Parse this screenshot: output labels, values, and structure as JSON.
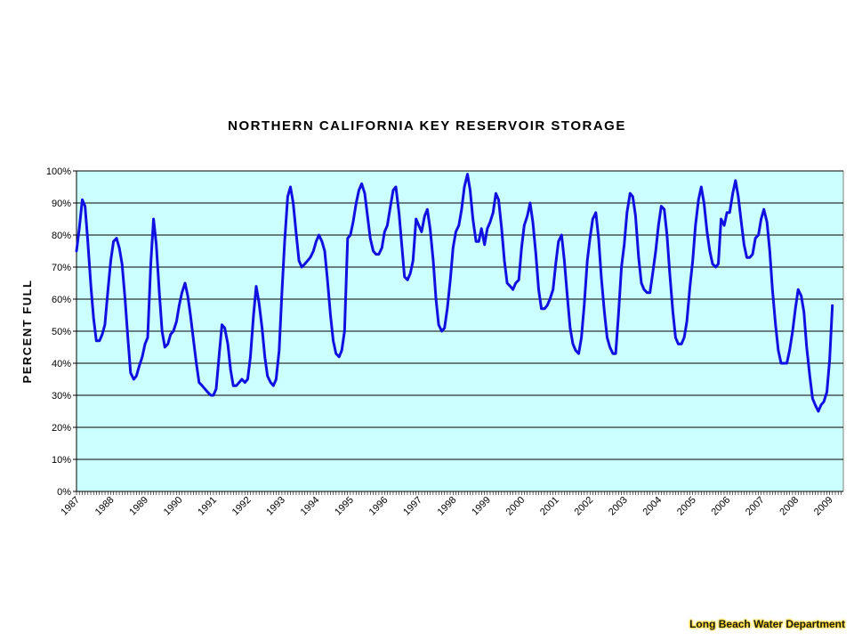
{
  "chart_data": {
    "type": "line",
    "title": "NORTHERN CALIFORNIA KEY RESERVOIR STORAGE",
    "xlabel": "",
    "ylabel": "PERCENT FULL",
    "x_tick_labels": [
      "1987",
      "1988",
      "1989",
      "1990",
      "1991",
      "1992",
      "1993",
      "1994",
      "1995",
      "1996",
      "1997",
      "1998",
      "1999",
      "2000",
      "2001",
      "2002",
      "2003",
      "2004",
      "2005",
      "2006",
      "2007",
      "2008",
      "2009"
    ],
    "y_tick_labels": [
      "0%",
      "10%",
      "20%",
      "30%",
      "40%",
      "50%",
      "60%",
      "70%",
      "80%",
      "90%",
      "100%"
    ],
    "ylim": [
      0,
      100
    ],
    "xlim": [
      1987.0,
      2009.4
    ],
    "grid": "horizontal",
    "background": "#ccffff",
    "series": [
      {
        "color": "#1010e0",
        "points": [
          [
            1987.0,
            75
          ],
          [
            1987.08,
            82
          ],
          [
            1987.17,
            91
          ],
          [
            1987.25,
            89
          ],
          [
            1987.33,
            78
          ],
          [
            1987.42,
            64
          ],
          [
            1987.5,
            54
          ],
          [
            1987.58,
            47
          ],
          [
            1987.67,
            47
          ],
          [
            1987.75,
            49
          ],
          [
            1987.83,
            52
          ],
          [
            1987.92,
            63
          ],
          [
            1988.0,
            72
          ],
          [
            1988.08,
            78
          ],
          [
            1988.17,
            79
          ],
          [
            1988.25,
            76
          ],
          [
            1988.33,
            71
          ],
          [
            1988.42,
            60
          ],
          [
            1988.5,
            48
          ],
          [
            1988.58,
            37
          ],
          [
            1988.67,
            35
          ],
          [
            1988.75,
            36
          ],
          [
            1988.83,
            39
          ],
          [
            1988.92,
            42
          ],
          [
            1989.0,
            46
          ],
          [
            1989.08,
            48
          ],
          [
            1989.17,
            71
          ],
          [
            1989.25,
            85
          ],
          [
            1989.33,
            77
          ],
          [
            1989.42,
            62
          ],
          [
            1989.5,
            50
          ],
          [
            1989.58,
            45
          ],
          [
            1989.67,
            46
          ],
          [
            1989.75,
            49
          ],
          [
            1989.83,
            50
          ],
          [
            1989.92,
            53
          ],
          [
            1990.0,
            58
          ],
          [
            1990.08,
            62
          ],
          [
            1990.17,
            65
          ],
          [
            1990.25,
            61
          ],
          [
            1990.33,
            55
          ],
          [
            1990.42,
            47
          ],
          [
            1990.5,
            40
          ],
          [
            1990.58,
            34
          ],
          [
            1990.67,
            33
          ],
          [
            1990.75,
            32
          ],
          [
            1990.83,
            31
          ],
          [
            1990.92,
            30
          ],
          [
            1991.0,
            30
          ],
          [
            1991.08,
            32
          ],
          [
            1991.17,
            43
          ],
          [
            1991.25,
            52
          ],
          [
            1991.33,
            51
          ],
          [
            1991.42,
            46
          ],
          [
            1991.5,
            38
          ],
          [
            1991.58,
            33
          ],
          [
            1991.67,
            33
          ],
          [
            1991.75,
            34
          ],
          [
            1991.83,
            35
          ],
          [
            1991.92,
            34
          ],
          [
            1992.0,
            35
          ],
          [
            1992.08,
            42
          ],
          [
            1992.17,
            55
          ],
          [
            1992.25,
            64
          ],
          [
            1992.33,
            59
          ],
          [
            1992.42,
            51
          ],
          [
            1992.5,
            42
          ],
          [
            1992.58,
            36
          ],
          [
            1992.67,
            34
          ],
          [
            1992.75,
            33
          ],
          [
            1992.83,
            35
          ],
          [
            1992.92,
            44
          ],
          [
            1993.0,
            62
          ],
          [
            1993.08,
            78
          ],
          [
            1993.17,
            92
          ],
          [
            1993.25,
            95
          ],
          [
            1993.33,
            90
          ],
          [
            1993.42,
            80
          ],
          [
            1993.5,
            72
          ],
          [
            1993.58,
            70
          ],
          [
            1993.67,
            71
          ],
          [
            1993.75,
            72
          ],
          [
            1993.83,
            73
          ],
          [
            1993.92,
            75
          ],
          [
            1994.0,
            78
          ],
          [
            1994.08,
            80
          ],
          [
            1994.17,
            78
          ],
          [
            1994.25,
            75
          ],
          [
            1994.33,
            66
          ],
          [
            1994.42,
            55
          ],
          [
            1994.5,
            47
          ],
          [
            1994.58,
            43
          ],
          [
            1994.67,
            42
          ],
          [
            1994.75,
            44
          ],
          [
            1994.83,
            50
          ],
          [
            1994.92,
            79
          ],
          [
            1995.0,
            80
          ],
          [
            1995.08,
            84
          ],
          [
            1995.17,
            90
          ],
          [
            1995.25,
            94
          ],
          [
            1995.33,
            96
          ],
          [
            1995.42,
            93
          ],
          [
            1995.5,
            86
          ],
          [
            1995.58,
            79
          ],
          [
            1995.67,
            75
          ],
          [
            1995.75,
            74
          ],
          [
            1995.83,
            74
          ],
          [
            1995.92,
            76
          ],
          [
            1996.0,
            81
          ],
          [
            1996.08,
            83
          ],
          [
            1996.17,
            89
          ],
          [
            1996.25,
            94
          ],
          [
            1996.33,
            95
          ],
          [
            1996.42,
            87
          ],
          [
            1996.5,
            77
          ],
          [
            1996.58,
            67
          ],
          [
            1996.67,
            66
          ],
          [
            1996.75,
            68
          ],
          [
            1996.83,
            72
          ],
          [
            1996.92,
            85
          ],
          [
            1997.0,
            83
          ],
          [
            1997.08,
            81
          ],
          [
            1997.17,
            86
          ],
          [
            1997.25,
            88
          ],
          [
            1997.33,
            82
          ],
          [
            1997.42,
            72
          ],
          [
            1997.5,
            60
          ],
          [
            1997.58,
            52
          ],
          [
            1997.67,
            50
          ],
          [
            1997.75,
            51
          ],
          [
            1997.83,
            57
          ],
          [
            1997.92,
            66
          ],
          [
            1998.0,
            76
          ],
          [
            1998.08,
            81
          ],
          [
            1998.17,
            83
          ],
          [
            1998.25,
            88
          ],
          [
            1998.33,
            95
          ],
          [
            1998.42,
            99
          ],
          [
            1998.5,
            94
          ],
          [
            1998.58,
            85
          ],
          [
            1998.67,
            78
          ],
          [
            1998.75,
            78
          ],
          [
            1998.83,
            82
          ],
          [
            1998.92,
            77
          ],
          [
            1999.0,
            82
          ],
          [
            1999.08,
            84
          ],
          [
            1999.17,
            87
          ],
          [
            1999.25,
            93
          ],
          [
            1999.33,
            91
          ],
          [
            1999.42,
            82
          ],
          [
            1999.5,
            72
          ],
          [
            1999.58,
            65
          ],
          [
            1999.67,
            64
          ],
          [
            1999.75,
            63
          ],
          [
            1999.83,
            65
          ],
          [
            1999.92,
            66
          ],
          [
            2000.0,
            76
          ],
          [
            2000.08,
            83
          ],
          [
            2000.17,
            86
          ],
          [
            2000.25,
            90
          ],
          [
            2000.33,
            84
          ],
          [
            2000.42,
            74
          ],
          [
            2000.5,
            63
          ],
          [
            2000.58,
            57
          ],
          [
            2000.67,
            57
          ],
          [
            2000.75,
            58
          ],
          [
            2000.83,
            60
          ],
          [
            2000.92,
            63
          ],
          [
            2001.0,
            71
          ],
          [
            2001.08,
            78
          ],
          [
            2001.17,
            80
          ],
          [
            2001.25,
            72
          ],
          [
            2001.33,
            62
          ],
          [
            2001.42,
            51
          ],
          [
            2001.5,
            46
          ],
          [
            2001.58,
            44
          ],
          [
            2001.67,
            43
          ],
          [
            2001.75,
            48
          ],
          [
            2001.83,
            58
          ],
          [
            2001.92,
            72
          ],
          [
            2002.0,
            79
          ],
          [
            2002.08,
            85
          ],
          [
            2002.17,
            87
          ],
          [
            2002.25,
            79
          ],
          [
            2002.33,
            67
          ],
          [
            2002.42,
            56
          ],
          [
            2002.5,
            48
          ],
          [
            2002.58,
            45
          ],
          [
            2002.67,
            43
          ],
          [
            2002.75,
            43
          ],
          [
            2002.83,
            55
          ],
          [
            2002.92,
            70
          ],
          [
            2003.0,
            77
          ],
          [
            2003.08,
            87
          ],
          [
            2003.17,
            93
          ],
          [
            2003.25,
            92
          ],
          [
            2003.33,
            86
          ],
          [
            2003.42,
            73
          ],
          [
            2003.5,
            65
          ],
          [
            2003.58,
            63
          ],
          [
            2003.67,
            62
          ],
          [
            2003.75,
            62
          ],
          [
            2003.83,
            68
          ],
          [
            2003.92,
            75
          ],
          [
            2004.0,
            83
          ],
          [
            2004.08,
            89
          ],
          [
            2004.17,
            88
          ],
          [
            2004.25,
            80
          ],
          [
            2004.33,
            68
          ],
          [
            2004.42,
            56
          ],
          [
            2004.5,
            48
          ],
          [
            2004.58,
            46
          ],
          [
            2004.67,
            46
          ],
          [
            2004.75,
            48
          ],
          [
            2004.83,
            53
          ],
          [
            2004.92,
            64
          ],
          [
            2005.0,
            72
          ],
          [
            2005.08,
            83
          ],
          [
            2005.17,
            91
          ],
          [
            2005.25,
            95
          ],
          [
            2005.33,
            90
          ],
          [
            2005.42,
            81
          ],
          [
            2005.5,
            75
          ],
          [
            2005.58,
            71
          ],
          [
            2005.67,
            70
          ],
          [
            2005.75,
            71
          ],
          [
            2005.83,
            85
          ],
          [
            2005.92,
            83
          ],
          [
            2006.0,
            87
          ],
          [
            2006.08,
            87
          ],
          [
            2006.17,
            93
          ],
          [
            2006.25,
            97
          ],
          [
            2006.33,
            92
          ],
          [
            2006.42,
            84
          ],
          [
            2006.5,
            77
          ],
          [
            2006.58,
            73
          ],
          [
            2006.67,
            73
          ],
          [
            2006.75,
            74
          ],
          [
            2006.83,
            79
          ],
          [
            2006.92,
            80
          ],
          [
            2007.0,
            85
          ],
          [
            2007.08,
            88
          ],
          [
            2007.17,
            84
          ],
          [
            2007.25,
            75
          ],
          [
            2007.33,
            63
          ],
          [
            2007.42,
            52
          ],
          [
            2007.5,
            44
          ],
          [
            2007.58,
            40
          ],
          [
            2007.67,
            40
          ],
          [
            2007.75,
            40
          ],
          [
            2007.83,
            44
          ],
          [
            2007.92,
            50
          ],
          [
            2008.0,
            57
          ],
          [
            2008.08,
            63
          ],
          [
            2008.17,
            61
          ],
          [
            2008.25,
            56
          ],
          [
            2008.33,
            45
          ],
          [
            2008.42,
            36
          ],
          [
            2008.5,
            29
          ],
          [
            2008.58,
            27
          ],
          [
            2008.67,
            25
          ],
          [
            2008.75,
            27
          ],
          [
            2008.83,
            28
          ],
          [
            2008.92,
            31
          ],
          [
            2009.0,
            41
          ],
          [
            2009.08,
            58
          ]
        ]
      }
    ]
  },
  "footer": {
    "credit": "Long Beach Water Department"
  }
}
